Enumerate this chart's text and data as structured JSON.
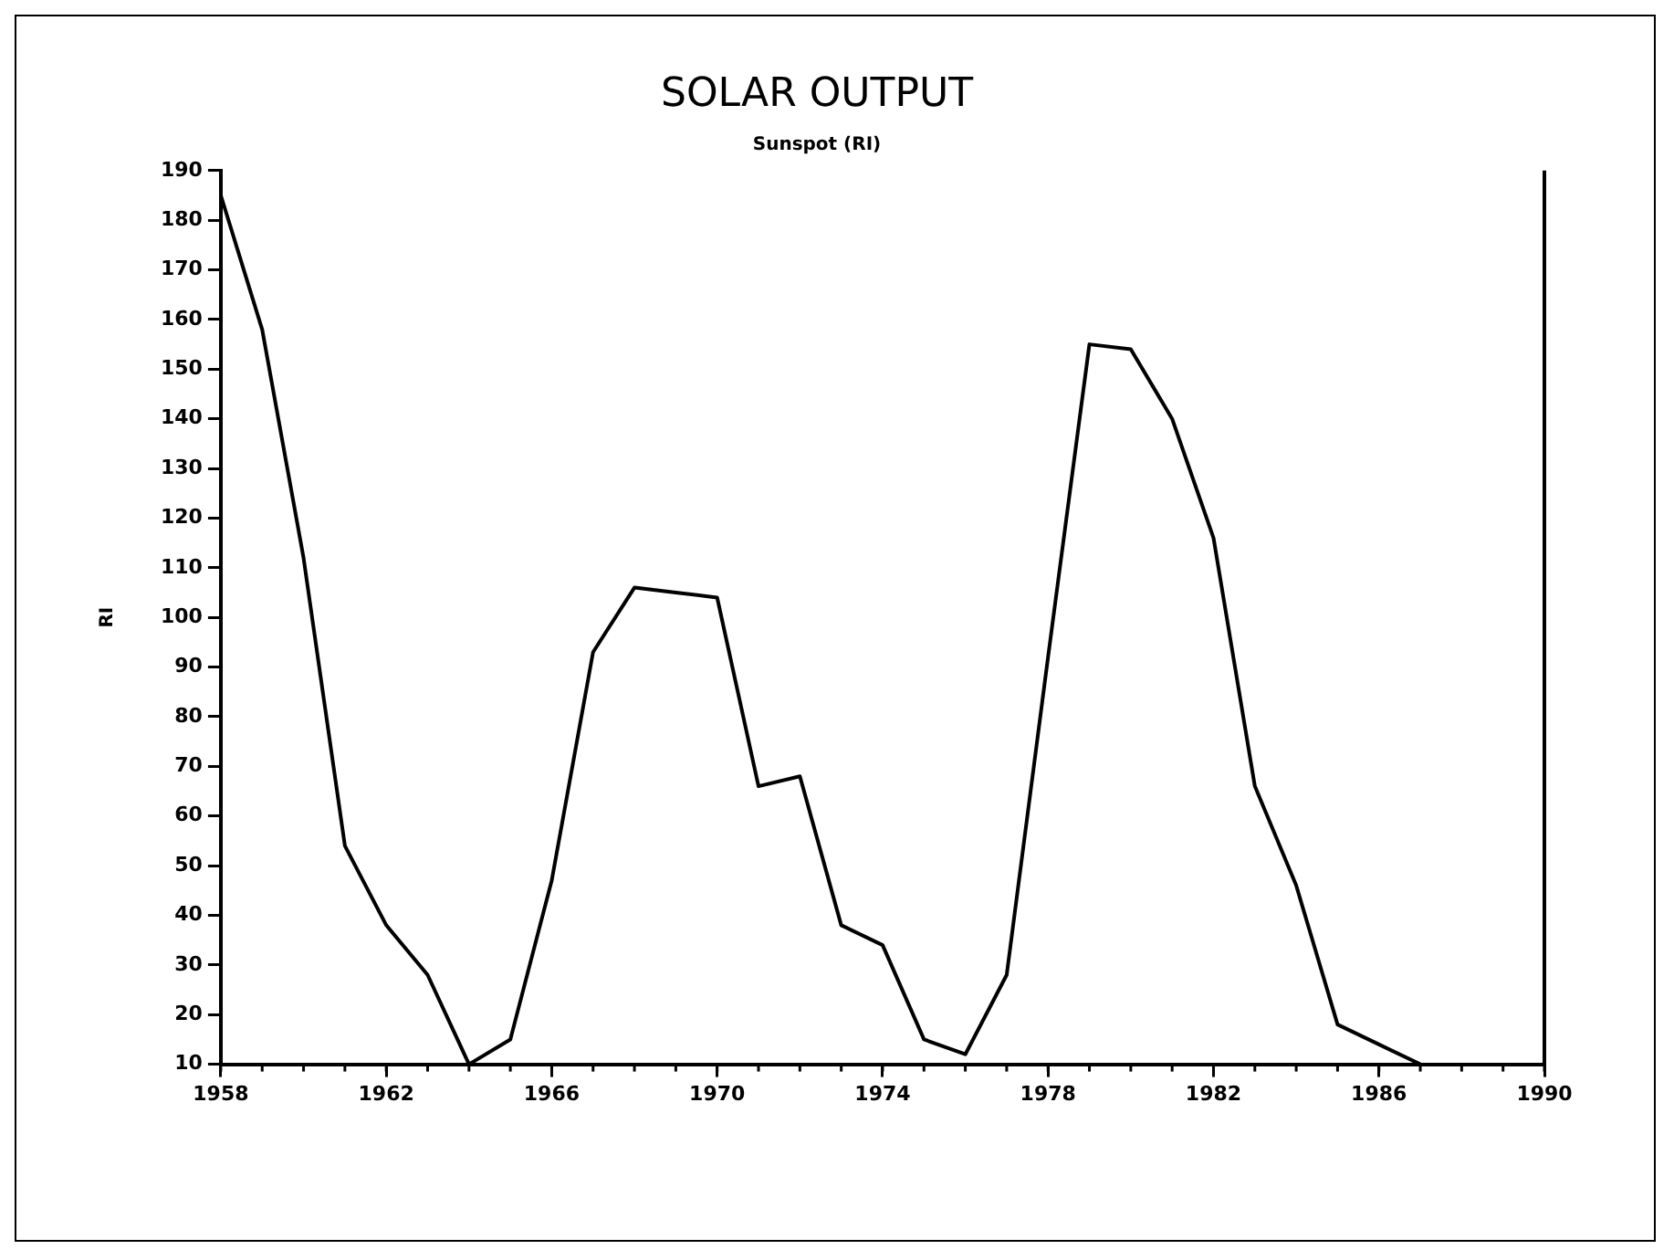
{
  "chart_data": {
    "type": "line",
    "title": "SOLAR OUTPUT",
    "subtitle": "Sunspot (RI)",
    "ylabel": "RI",
    "x": [
      1958,
      1959,
      1960,
      1961,
      1962,
      1963,
      1964,
      1965,
      1966,
      1967,
      1968,
      1969,
      1970,
      1971,
      1972,
      1973,
      1974,
      1975,
      1976,
      1977,
      1978,
      1979,
      1980,
      1981,
      1982,
      1983,
      1984,
      1985,
      1986,
      1987
    ],
    "series": [
      {
        "color": "#000000",
        "values": [
          185,
          158,
          112,
          54,
          38,
          28,
          10,
          15,
          47,
          93,
          106,
          105,
          104,
          66,
          68,
          38,
          34,
          15,
          12,
          28,
          92,
          155,
          154,
          140,
          116,
          66,
          46,
          18,
          14,
          10
        ]
      }
    ],
    "xlim": [
      1958,
      1990
    ],
    "xticks": [
      1958,
      1962,
      1966,
      1970,
      1974,
      1978,
      1982,
      1986,
      1990
    ],
    "ylim": [
      10,
      190
    ],
    "yticks": [
      10,
      20,
      30,
      40,
      50,
      60,
      70,
      80,
      90,
      100,
      110,
      120,
      130,
      140,
      150,
      160,
      170,
      180,
      190
    ],
    "grid": false,
    "legend": false,
    "marker": "none",
    "line_style": "solid"
  }
}
